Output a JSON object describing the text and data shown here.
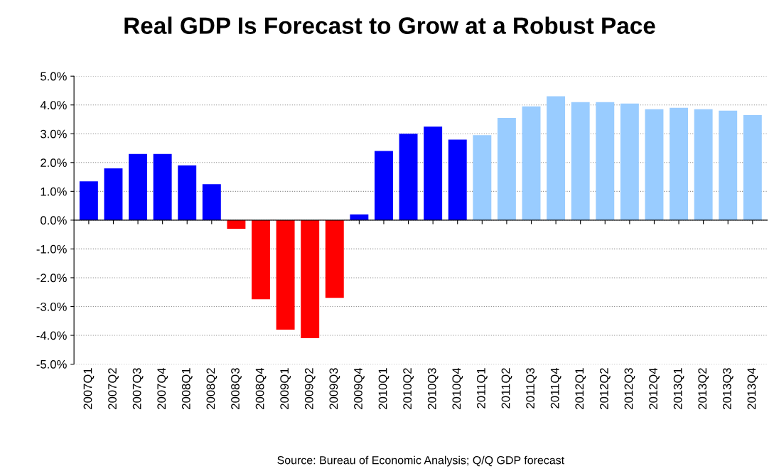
{
  "chart_data": {
    "type": "bar",
    "title": "Real GDP Is Forecast to Grow at a Robust Pace",
    "categories": [
      "2007Q1",
      "2007Q2",
      "2007Q3",
      "2007Q4",
      "2008Q1",
      "2008Q2",
      "2008Q3",
      "2008Q4",
      "2009Q1",
      "2009Q2",
      "2009Q3",
      "2009Q4",
      "2010Q1",
      "2010Q2",
      "2010Q3",
      "2010Q4",
      "2011Q1",
      "2011Q2",
      "2011Q3",
      "2011Q4",
      "2012Q1",
      "2012Q2",
      "2012Q3",
      "2012Q4",
      "2013Q1",
      "2013Q2",
      "2013Q3",
      "2013Q4"
    ],
    "values": [
      1.35,
      1.8,
      2.3,
      2.3,
      1.9,
      1.25,
      -0.3,
      -2.75,
      -3.8,
      -4.1,
      -2.7,
      0.2,
      2.4,
      3.0,
      3.25,
      2.8,
      2.95,
      3.55,
      3.95,
      4.3,
      4.1,
      4.1,
      4.05,
      3.85,
      3.9,
      3.85,
      3.8,
      3.65
    ],
    "colors": [
      "#0000ff",
      "#0000ff",
      "#0000ff",
      "#0000ff",
      "#0000ff",
      "#0000ff",
      "#ff0000",
      "#ff0000",
      "#ff0000",
      "#ff0000",
      "#ff0000",
      "#0000ff",
      "#0000ff",
      "#0000ff",
      "#0000ff",
      "#0000ff",
      "#99ccff",
      "#99ccff",
      "#99ccff",
      "#99ccff",
      "#99ccff",
      "#99ccff",
      "#99ccff",
      "#99ccff",
      "#99ccff",
      "#99ccff",
      "#99ccff",
      "#99ccff"
    ],
    "ylim": [
      -5,
      5
    ],
    "yticks": [
      {
        "value": -5,
        "label": "-5.0%"
      },
      {
        "value": -4,
        "label": "-4.0%"
      },
      {
        "value": -3,
        "label": "-3.0%"
      },
      {
        "value": -2,
        "label": "-2.0%"
      },
      {
        "value": -1,
        "label": "-1.0%"
      },
      {
        "value": 0,
        "label": "0.0%"
      },
      {
        "value": 1,
        "label": "1.0%"
      },
      {
        "value": 2,
        "label": "2.0%"
      },
      {
        "value": 3,
        "label": "3.0%"
      },
      {
        "value": 4,
        "label": "4.0%"
      },
      {
        "value": 5,
        "label": "5.0%"
      }
    ],
    "grid": "y",
    "legend": false,
    "annotations": [
      "Source: Bureau of Economic Analysis; Q/Q GDP forecast"
    ]
  }
}
